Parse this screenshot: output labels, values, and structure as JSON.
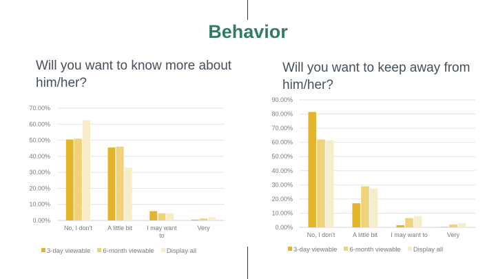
{
  "slide": {
    "title": "Behavior"
  },
  "legend": {
    "items": [
      {
        "label": "3-day viewable",
        "color": "#e3b52c"
      },
      {
        "label": "6-month viewable",
        "color": "#f0d27a"
      },
      {
        "label": "Display all",
        "color": "#f8edc9"
      }
    ]
  },
  "chart_data": [
    {
      "type": "bar",
      "title": "Will you want to know more about him/her?",
      "categories": [
        "No, I don't",
        "A little bit",
        "I may want to",
        "Very"
      ],
      "series": [
        {
          "name": "3-day viewable",
          "values": [
            50.5,
            45.5,
            5.8,
            0.5
          ]
        },
        {
          "name": "6-month viewable",
          "values": [
            51.0,
            46.0,
            4.5,
            1.2
          ]
        },
        {
          "name": "Display all",
          "values": [
            62.5,
            33.0,
            4.5,
            2.0
          ]
        }
      ],
      "ylim": [
        0,
        70
      ],
      "yticks": [
        "0.00%",
        "10.00%",
        "20.00%",
        "30.00%",
        "40.00%",
        "50.00%",
        "60.00%",
        "70.00%"
      ],
      "grid": true,
      "legend_position": "bottom"
    },
    {
      "type": "bar",
      "title": "Will you want to keep away from him/her?",
      "categories": [
        "No, I don't",
        "A little bit",
        "I may want to",
        "Very"
      ],
      "series": [
        {
          "name": "3-day viewable",
          "values": [
            81.5,
            17.0,
            1.5,
            0.3
          ]
        },
        {
          "name": "6-month viewable",
          "values": [
            62.0,
            29.0,
            6.5,
            2.0
          ]
        },
        {
          "name": "Display all",
          "values": [
            61.5,
            27.5,
            8.0,
            3.0
          ]
        }
      ],
      "ylim": [
        0,
        90
      ],
      "yticks": [
        "0.00%",
        "10.00%",
        "20.00%",
        "30.00%",
        "40.00%",
        "50.00%",
        "60.00%",
        "70.00%",
        "80.00%",
        "90.00%"
      ],
      "grid": true,
      "legend_position": "bottom"
    }
  ]
}
